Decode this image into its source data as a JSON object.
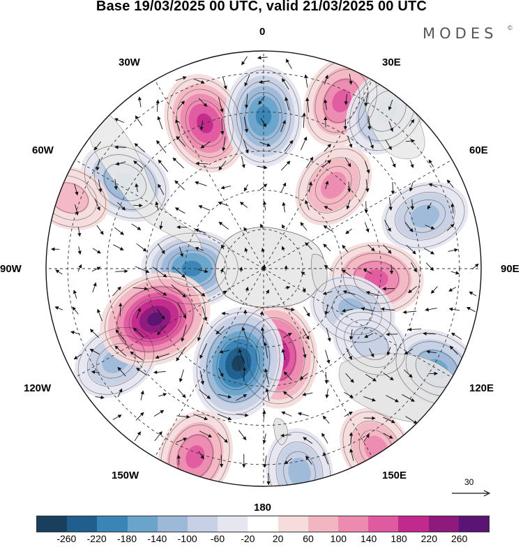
{
  "title": "Base 19/03/2025 00 UTC, valid 21/03/2025 00 UTC",
  "brand": "MODES",
  "brand_mark": "©",
  "longitude_labels": {
    "lon_0": "0",
    "lon_30e": "30E",
    "lon_60e": "60E",
    "lon_90e": "90E",
    "lon_120e": "120E",
    "lon_150e": "150E",
    "lon_180": "180",
    "lon_150w": "150W",
    "lon_120w": "120W",
    "lon_90w": "90W",
    "lon_60w": "60W",
    "lon_30w": "30W"
  },
  "reference_vector": {
    "label": "30"
  },
  "projection": "south-polar-stereographic",
  "colorbar": {
    "ticks": [
      "-260",
      "-220",
      "-180",
      "-140",
      "-100",
      "-60",
      "-20",
      "20",
      "60",
      "100",
      "140",
      "180",
      "220",
      "260"
    ],
    "colors": [
      "#1a3f5e",
      "#205f8d",
      "#3a84b6",
      "#6aa4cb",
      "#9db9d8",
      "#c7d0e4",
      "#e6e6f0",
      "#ffffff",
      "#f7dcdc",
      "#f2b6c2",
      "#ec8ab0",
      "#e05aa0",
      "#c12a8c",
      "#8e1a7e",
      "#5a1574"
    ]
  },
  "anomaly_centers": [
    {
      "lon": -90,
      "lat_ring": 0.33,
      "value": -180,
      "color": "#3a84b6"
    },
    {
      "lon": -58,
      "lat_ring": 0.75,
      "value": -140,
      "color": "#6aa4cb"
    },
    {
      "lon": -22,
      "lat_ring": 0.72,
      "value": 180,
      "color": "#e05aa0"
    },
    {
      "lon": 0,
      "lat_ring": 0.7,
      "value": -180,
      "color": "#3a84b6"
    },
    {
      "lon": 25,
      "lat_ring": 0.85,
      "value": 140,
      "color": "#ec8ab0"
    },
    {
      "lon": 38,
      "lat_ring": 0.92,
      "value": -140,
      "color": "#6aa4cb"
    },
    {
      "lon": 40,
      "lat_ring": 0.5,
      "value": 100,
      "color": "#f2b6c2"
    },
    {
      "lon": 72,
      "lat_ring": 0.78,
      "value": -100,
      "color": "#9db9d8"
    },
    {
      "lon": 95,
      "lat_ring": 0.52,
      "value": 140,
      "color": "#ec8ab0"
    },
    {
      "lon": 115,
      "lat_ring": 0.45,
      "value": -100,
      "color": "#9db9d8"
    },
    {
      "lon": 120,
      "lat_ring": 0.92,
      "value": -140,
      "color": "#6aa4cb"
    },
    {
      "lon": 148,
      "lat_ring": 0.98,
      "value": 100,
      "color": "#f2b6c2"
    },
    {
      "lon": 170,
      "lat_ring": 0.95,
      "value": -100,
      "color": "#9db9d8"
    },
    {
      "lon": 172,
      "lat_ring": 0.4,
      "value": 220,
      "color": "#c12a8c"
    },
    {
      "lon": -165,
      "lat_ring": 0.45,
      "value": -260,
      "color": "#1a3f5e"
    },
    {
      "lon": -160,
      "lat_ring": 0.92,
      "value": 140,
      "color": "#ec8ab0"
    },
    {
      "lon": -122,
      "lat_ring": 0.8,
      "value": -100,
      "color": "#9db9d8"
    },
    {
      "lon": -115,
      "lat_ring": 0.55,
      "value": 260,
      "color": "#8e1a7e"
    },
    {
      "lon": -70,
      "lat_ring": 0.95,
      "value": 60,
      "color": "#f7dcdc"
    },
    {
      "lon": 125,
      "lat_ring": 0.6,
      "value": -60,
      "color": "#c7d0e4"
    }
  ]
}
